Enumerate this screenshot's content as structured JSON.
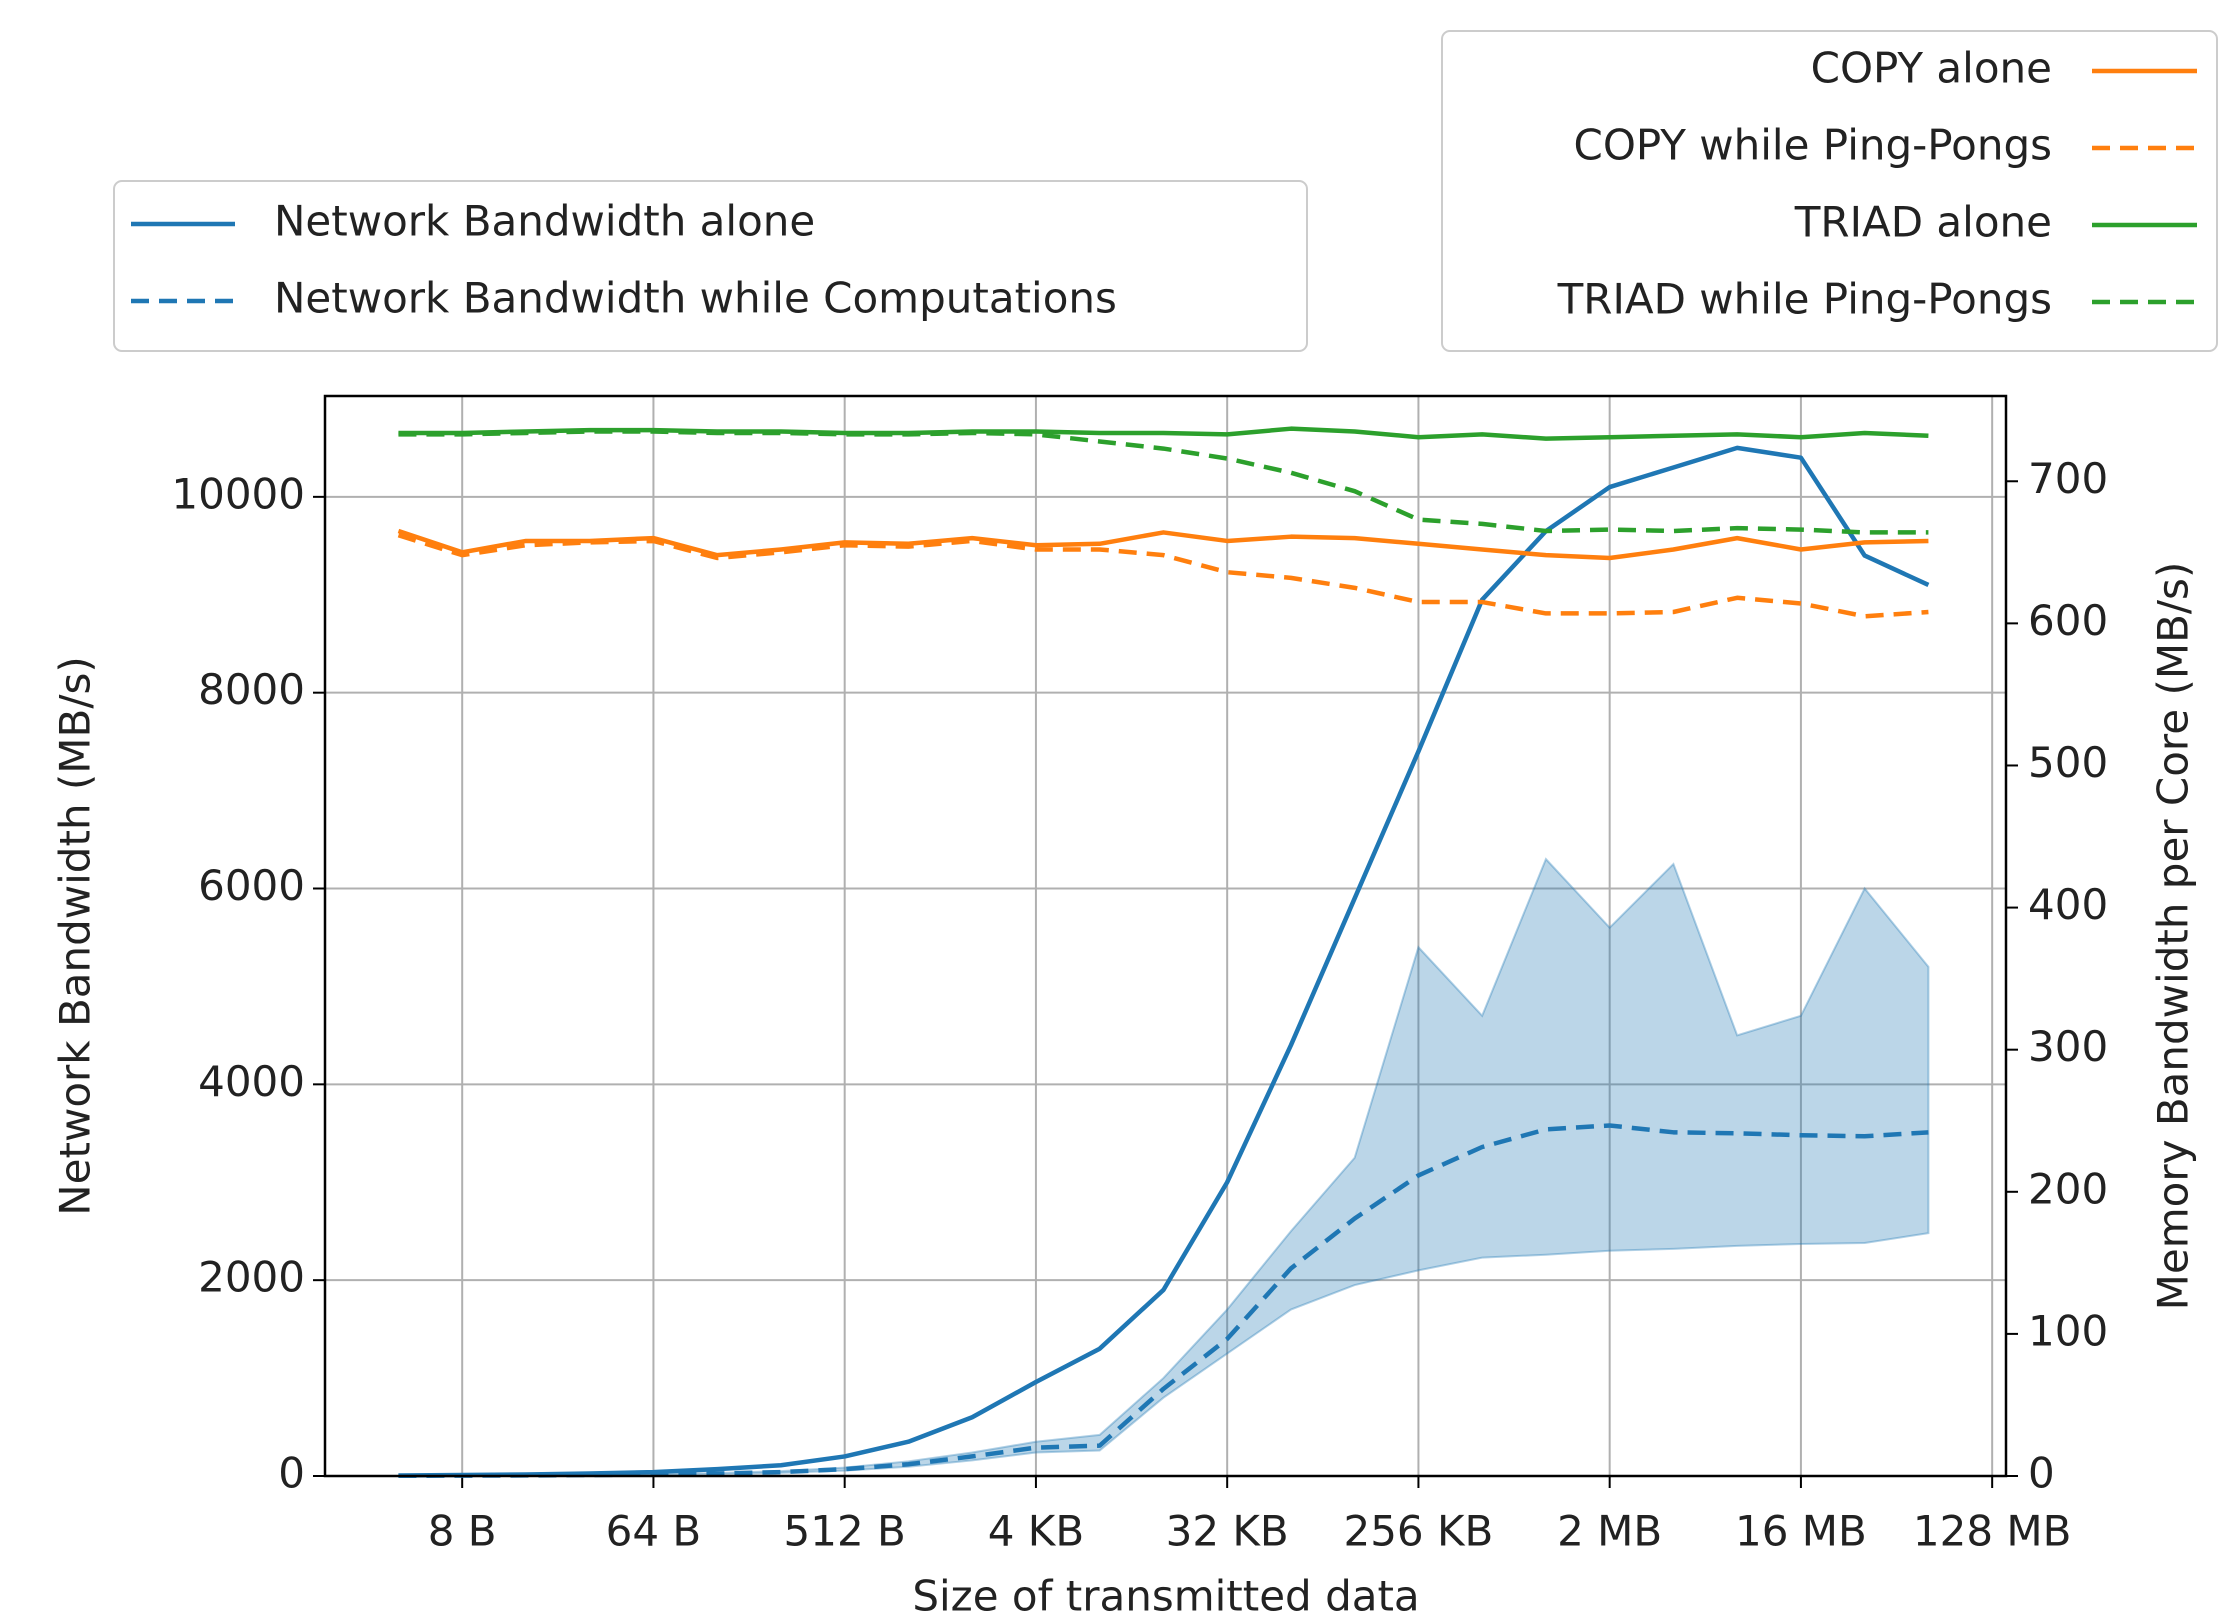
{
  "chart_data": {
    "type": "line",
    "xlabel": "Size of transmitted data",
    "ylabel": "Network Bandwidth (MB/s)",
    "y2label": "Memory Bandwidth per Core (MB/s)",
    "xscale": "log",
    "grid": true,
    "x": [
      4,
      8,
      16,
      32,
      64,
      128,
      256,
      512,
      1024,
      2048,
      4096,
      8192,
      16384,
      32768,
      65536,
      131072,
      262144,
      524288,
      1048576,
      2097152,
      4194304,
      8388608,
      16777216,
      33554432,
      67108864
    ],
    "xlim": [
      1.8,
      156000000
    ],
    "xticks": [
      {
        "value": 8,
        "label": "8 B"
      },
      {
        "value": 64,
        "label": "64 B"
      },
      {
        "value": 512,
        "label": "512 B"
      },
      {
        "value": 4096,
        "label": "4 KB"
      },
      {
        "value": 32768,
        "label": "32 KB"
      },
      {
        "value": 262144,
        "label": "256 KB"
      },
      {
        "value": 2097152,
        "label": "2 MB"
      },
      {
        "value": 16777216,
        "label": "16 MB"
      },
      {
        "value": 134217728,
        "label": "128 MB"
      }
    ],
    "ylim": [
      0,
      11030
    ],
    "yticks": [
      0,
      2000,
      4000,
      6000,
      8000,
      10000
    ],
    "y2lim": [
      0,
      760
    ],
    "y2ticks": [
      0,
      100,
      200,
      300,
      400,
      500,
      600,
      700
    ],
    "series": [
      {
        "name": "Network Bandwidth alone",
        "color": "#1f77b4",
        "dashed": false,
        "axis": "y",
        "values": [
          5,
          10,
          15,
          25,
          40,
          70,
          110,
          200,
          350,
          600,
          960,
          1300,
          1900,
          3000,
          4400,
          5900,
          7400,
          8950,
          9650,
          10100,
          10300,
          10500,
          10400,
          9400,
          9100
        ]
      },
      {
        "name": "Network Bandwidth while Computations",
        "color": "#1f77b4",
        "dashed": true,
        "axis": "y",
        "values": [
          2,
          4,
          6,
          10,
          15,
          25,
          40,
          70,
          120,
          200,
          290,
          310,
          890,
          1400,
          2120,
          2630,
          3070,
          3360,
          3540,
          3580,
          3510,
          3500,
          3480,
          3470,
          3510
        ],
        "upper": [
          2,
          4,
          7,
          12,
          18,
          30,
          50,
          85,
          150,
          240,
          350,
          420,
          1000,
          1700,
          2500,
          3250,
          5400,
          4700,
          6300,
          5600,
          6250,
          4500,
          4700,
          6000,
          5200
        ],
        "lower": [
          2,
          3,
          5,
          8,
          12,
          20,
          32,
          55,
          95,
          160,
          240,
          260,
          800,
          1250,
          1700,
          1950,
          2100,
          2230,
          2260,
          2300,
          2320,
          2350,
          2370,
          2380,
          2480
        ]
      },
      {
        "name": "COPY alone",
        "color": "#ff7f0e",
        "dashed": false,
        "axis": "y2",
        "values": [
          665,
          650,
          658,
          658,
          660,
          648,
          652,
          657,
          656,
          660,
          655,
          656,
          664,
          658,
          661,
          660,
          656,
          652,
          648,
          646,
          652,
          660,
          652,
          657,
          658
        ]
      },
      {
        "name": "COPY while Ping-Pongs",
        "color": "#ff7f0e",
        "dashed": true,
        "axis": "y2",
        "values": [
          662,
          648,
          655,
          657,
          658,
          646,
          650,
          655,
          654,
          658,
          652,
          652,
          648,
          636,
          632,
          625,
          615,
          615,
          607,
          607,
          608,
          618,
          614,
          605,
          608
        ]
      },
      {
        "name": "TRIAD alone",
        "color": "#2ca02c",
        "dashed": false,
        "axis": "y2",
        "values": [
          734,
          734,
          735,
          736,
          736,
          735,
          735,
          734,
          734,
          735,
          735,
          734,
          734,
          733,
          737,
          735,
          731,
          733,
          730,
          731,
          732,
          733,
          731,
          734,
          732
        ]
      },
      {
        "name": "TRIAD while Ping-Pongs",
        "color": "#2ca02c",
        "dashed": true,
        "axis": "y2",
        "values": [
          733,
          733,
          734,
          735,
          735,
          734,
          734,
          733,
          733,
          734,
          733,
          728,
          723,
          716,
          706,
          693,
          673,
          670,
          665,
          666,
          665,
          667,
          666,
          664,
          664
        ]
      }
    ]
  }
}
